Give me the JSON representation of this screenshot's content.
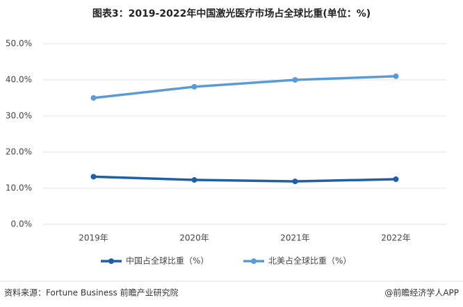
{
  "chart_data": {
    "type": "line",
    "title": "图表3：2019-2022年中国激光医疗市场占全球比重(单位：%)",
    "categories": [
      "2019年",
      "2020年",
      "2021年",
      "2022年"
    ],
    "series": [
      {
        "name": "中国占全球比重（%）",
        "color": "#1f5fa8",
        "values": [
          13.2,
          12.3,
          11.9,
          12.5
        ]
      },
      {
        "name": "北美占全球比重（%）",
        "color": "#5b9bd5",
        "values": [
          35.0,
          38.1,
          40.0,
          41.0
        ]
      }
    ],
    "ylim": [
      0,
      50
    ],
    "yticks": [
      {
        "value": 0,
        "label": "0.0%"
      },
      {
        "value": 10,
        "label": "10.0%"
      },
      {
        "value": 20,
        "label": "20.0%"
      },
      {
        "value": 30,
        "label": "30.0%"
      },
      {
        "value": 40,
        "label": "40.0%"
      },
      {
        "value": 50,
        "label": "50.0%"
      }
    ],
    "grid": true,
    "legend": "bottom",
    "source": "资料来源：Fortune Business 前瞻产业研究院",
    "credit": "@前瞻经济学人APP"
  }
}
